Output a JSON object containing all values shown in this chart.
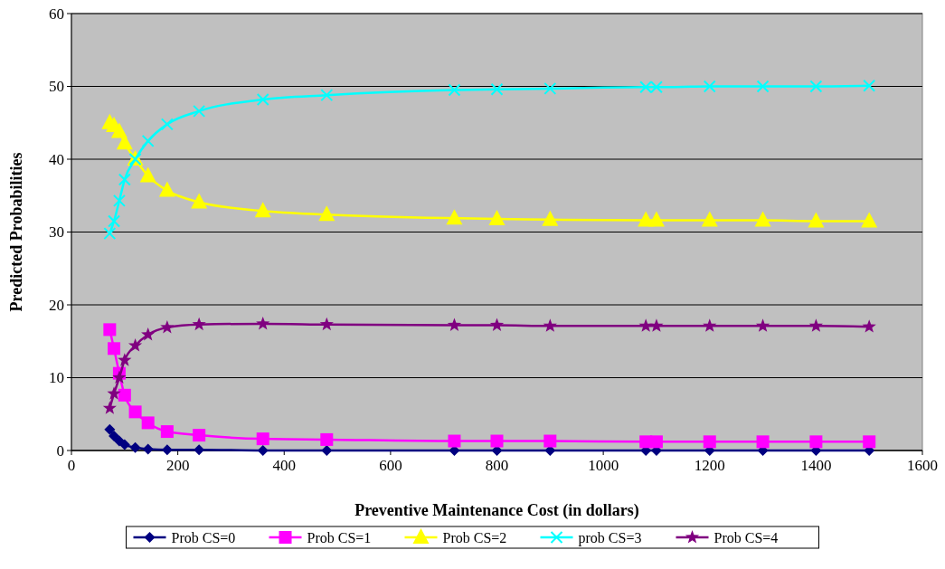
{
  "chart_data": {
    "type": "line",
    "xlabel": "Preventive Maintenance Cost (in dollars)",
    "ylabel": "Predicted Probabilities",
    "x": [
      72,
      80,
      90,
      100,
      120,
      144,
      180,
      240,
      360,
      480,
      720,
      800,
      900,
      1080,
      1100,
      1200,
      1300,
      1400,
      1500
    ],
    "xlim": [
      0,
      1600
    ],
    "xticks": [
      0,
      200,
      400,
      600,
      800,
      1000,
      1200,
      1400,
      1600
    ],
    "ylim": [
      0,
      60
    ],
    "yticks": [
      0,
      10,
      20,
      30,
      40,
      50,
      60
    ],
    "grid": "y",
    "legend": "bottom",
    "series": [
      {
        "name": "Prob CS=0",
        "color": "#000080",
        "marker": "diamond",
        "values": [
          2.9,
          2.0,
          1.3,
          0.8,
          0.4,
          0.2,
          0.1,
          0.1,
          0,
          0,
          0,
          0,
          0,
          0,
          0,
          0,
          0,
          0,
          0
        ]
      },
      {
        "name": "Prob CS=1",
        "color": "#ff00ff",
        "marker": "square",
        "values": [
          16.6,
          14.0,
          10.6,
          7.6,
          5.3,
          3.8,
          2.6,
          2.1,
          1.6,
          1.5,
          1.3,
          1.3,
          1.3,
          1.2,
          1.2,
          1.2,
          1.2,
          1.2,
          1.2
        ]
      },
      {
        "name": "Prob CS=2",
        "color": "#ffff00",
        "marker": "triangle",
        "values": [
          45,
          44.6,
          43.8,
          42.2,
          40,
          37.7,
          35.7,
          34.1,
          32.9,
          32.4,
          31.9,
          31.8,
          31.7,
          31.6,
          31.6,
          31.6,
          31.6,
          31.5,
          31.5
        ]
      },
      {
        "name": "prob CS=3",
        "color": "#00ffff",
        "marker": "cross",
        "values": [
          29.8,
          31.5,
          34.3,
          37.2,
          40,
          42.5,
          44.8,
          46.6,
          48.2,
          48.8,
          49.5,
          49.6,
          49.7,
          49.9,
          49.9,
          50,
          50,
          50,
          50.1
        ]
      },
      {
        "name": "Prob CS=4",
        "color": "#800080",
        "marker": "star",
        "values": [
          5.8,
          7.8,
          10,
          12.4,
          14.4,
          15.9,
          16.9,
          17.3,
          17.4,
          17.3,
          17.2,
          17.2,
          17.1,
          17.1,
          17.1,
          17.1,
          17.1,
          17.1,
          17.0
        ]
      }
    ]
  }
}
